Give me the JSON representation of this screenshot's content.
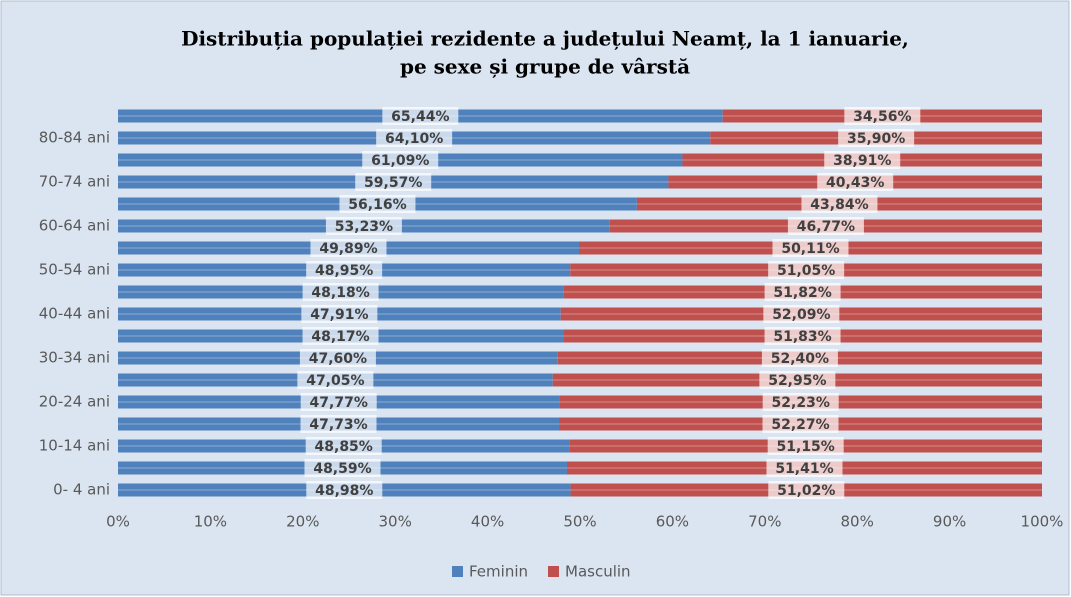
{
  "chart_data": {
    "type": "stacked_barh",
    "title": [
      "Distribuția populației rezidente a județului Neamț, la 1 ianuarie,",
      "pe sexe și grupe de vârstă"
    ],
    "categories": [
      "0- 4 ani",
      null,
      "10-14 ani",
      null,
      "20-24 ani",
      null,
      "30-34 ani",
      null,
      "40-44 ani",
      null,
      "50-54 ani",
      null,
      "60-64 ani",
      null,
      "70-74 ani",
      null,
      "80-84 ani",
      null
    ],
    "series": [
      {
        "name": "Feminin",
        "color": "#4f81bd",
        "values": [
          48.98,
          48.59,
          48.85,
          47.73,
          47.77,
          47.05,
          47.6,
          48.17,
          47.91,
          48.18,
          48.95,
          49.89,
          53.23,
          56.16,
          59.57,
          61.09,
          64.1,
          65.44
        ],
        "value_labels": [
          "48,98%",
          "48,59%",
          "48,85%",
          "47,73%",
          "47,77%",
          "47,05%",
          "47,60%",
          "48,17%",
          "47,91%",
          "48,18%",
          "48,95%",
          "49,89%",
          "53,23%",
          "56,16%",
          "59,57%",
          "61,09%",
          "64,10%",
          "65,44%"
        ]
      },
      {
        "name": "Masculin",
        "color": "#c0504d",
        "values": [
          51.02,
          51.41,
          51.15,
          52.27,
          52.23,
          52.95,
          52.4,
          51.83,
          52.09,
          51.82,
          51.05,
          50.11,
          46.77,
          43.84,
          40.43,
          38.91,
          35.9,
          34.56
        ],
        "value_labels": [
          "51,02%",
          "51,41%",
          "51,15%",
          "52,27%",
          "52,23%",
          "52,95%",
          "52,40%",
          "51,83%",
          "52,09%",
          "51,82%",
          "51,05%",
          "50,11%",
          "46,77%",
          "43,84%",
          "40,43%",
          "38,91%",
          "35,90%",
          "34,56%"
        ]
      }
    ],
    "xlim": [
      0,
      100
    ],
    "xticks": [
      {
        "value": 0,
        "label": "0%"
      },
      {
        "value": 10,
        "label": "10%"
      },
      {
        "value": 20,
        "label": "20%"
      },
      {
        "value": 30,
        "label": "30%"
      },
      {
        "value": 40,
        "label": "40%"
      },
      {
        "value": 50,
        "label": "50%"
      },
      {
        "value": 60,
        "label": "60%"
      },
      {
        "value": 70,
        "label": "70%"
      },
      {
        "value": 80,
        "label": "80%"
      },
      {
        "value": 90,
        "label": "90%"
      },
      {
        "value": 100,
        "label": "100%"
      }
    ],
    "legend": "bottom"
  }
}
